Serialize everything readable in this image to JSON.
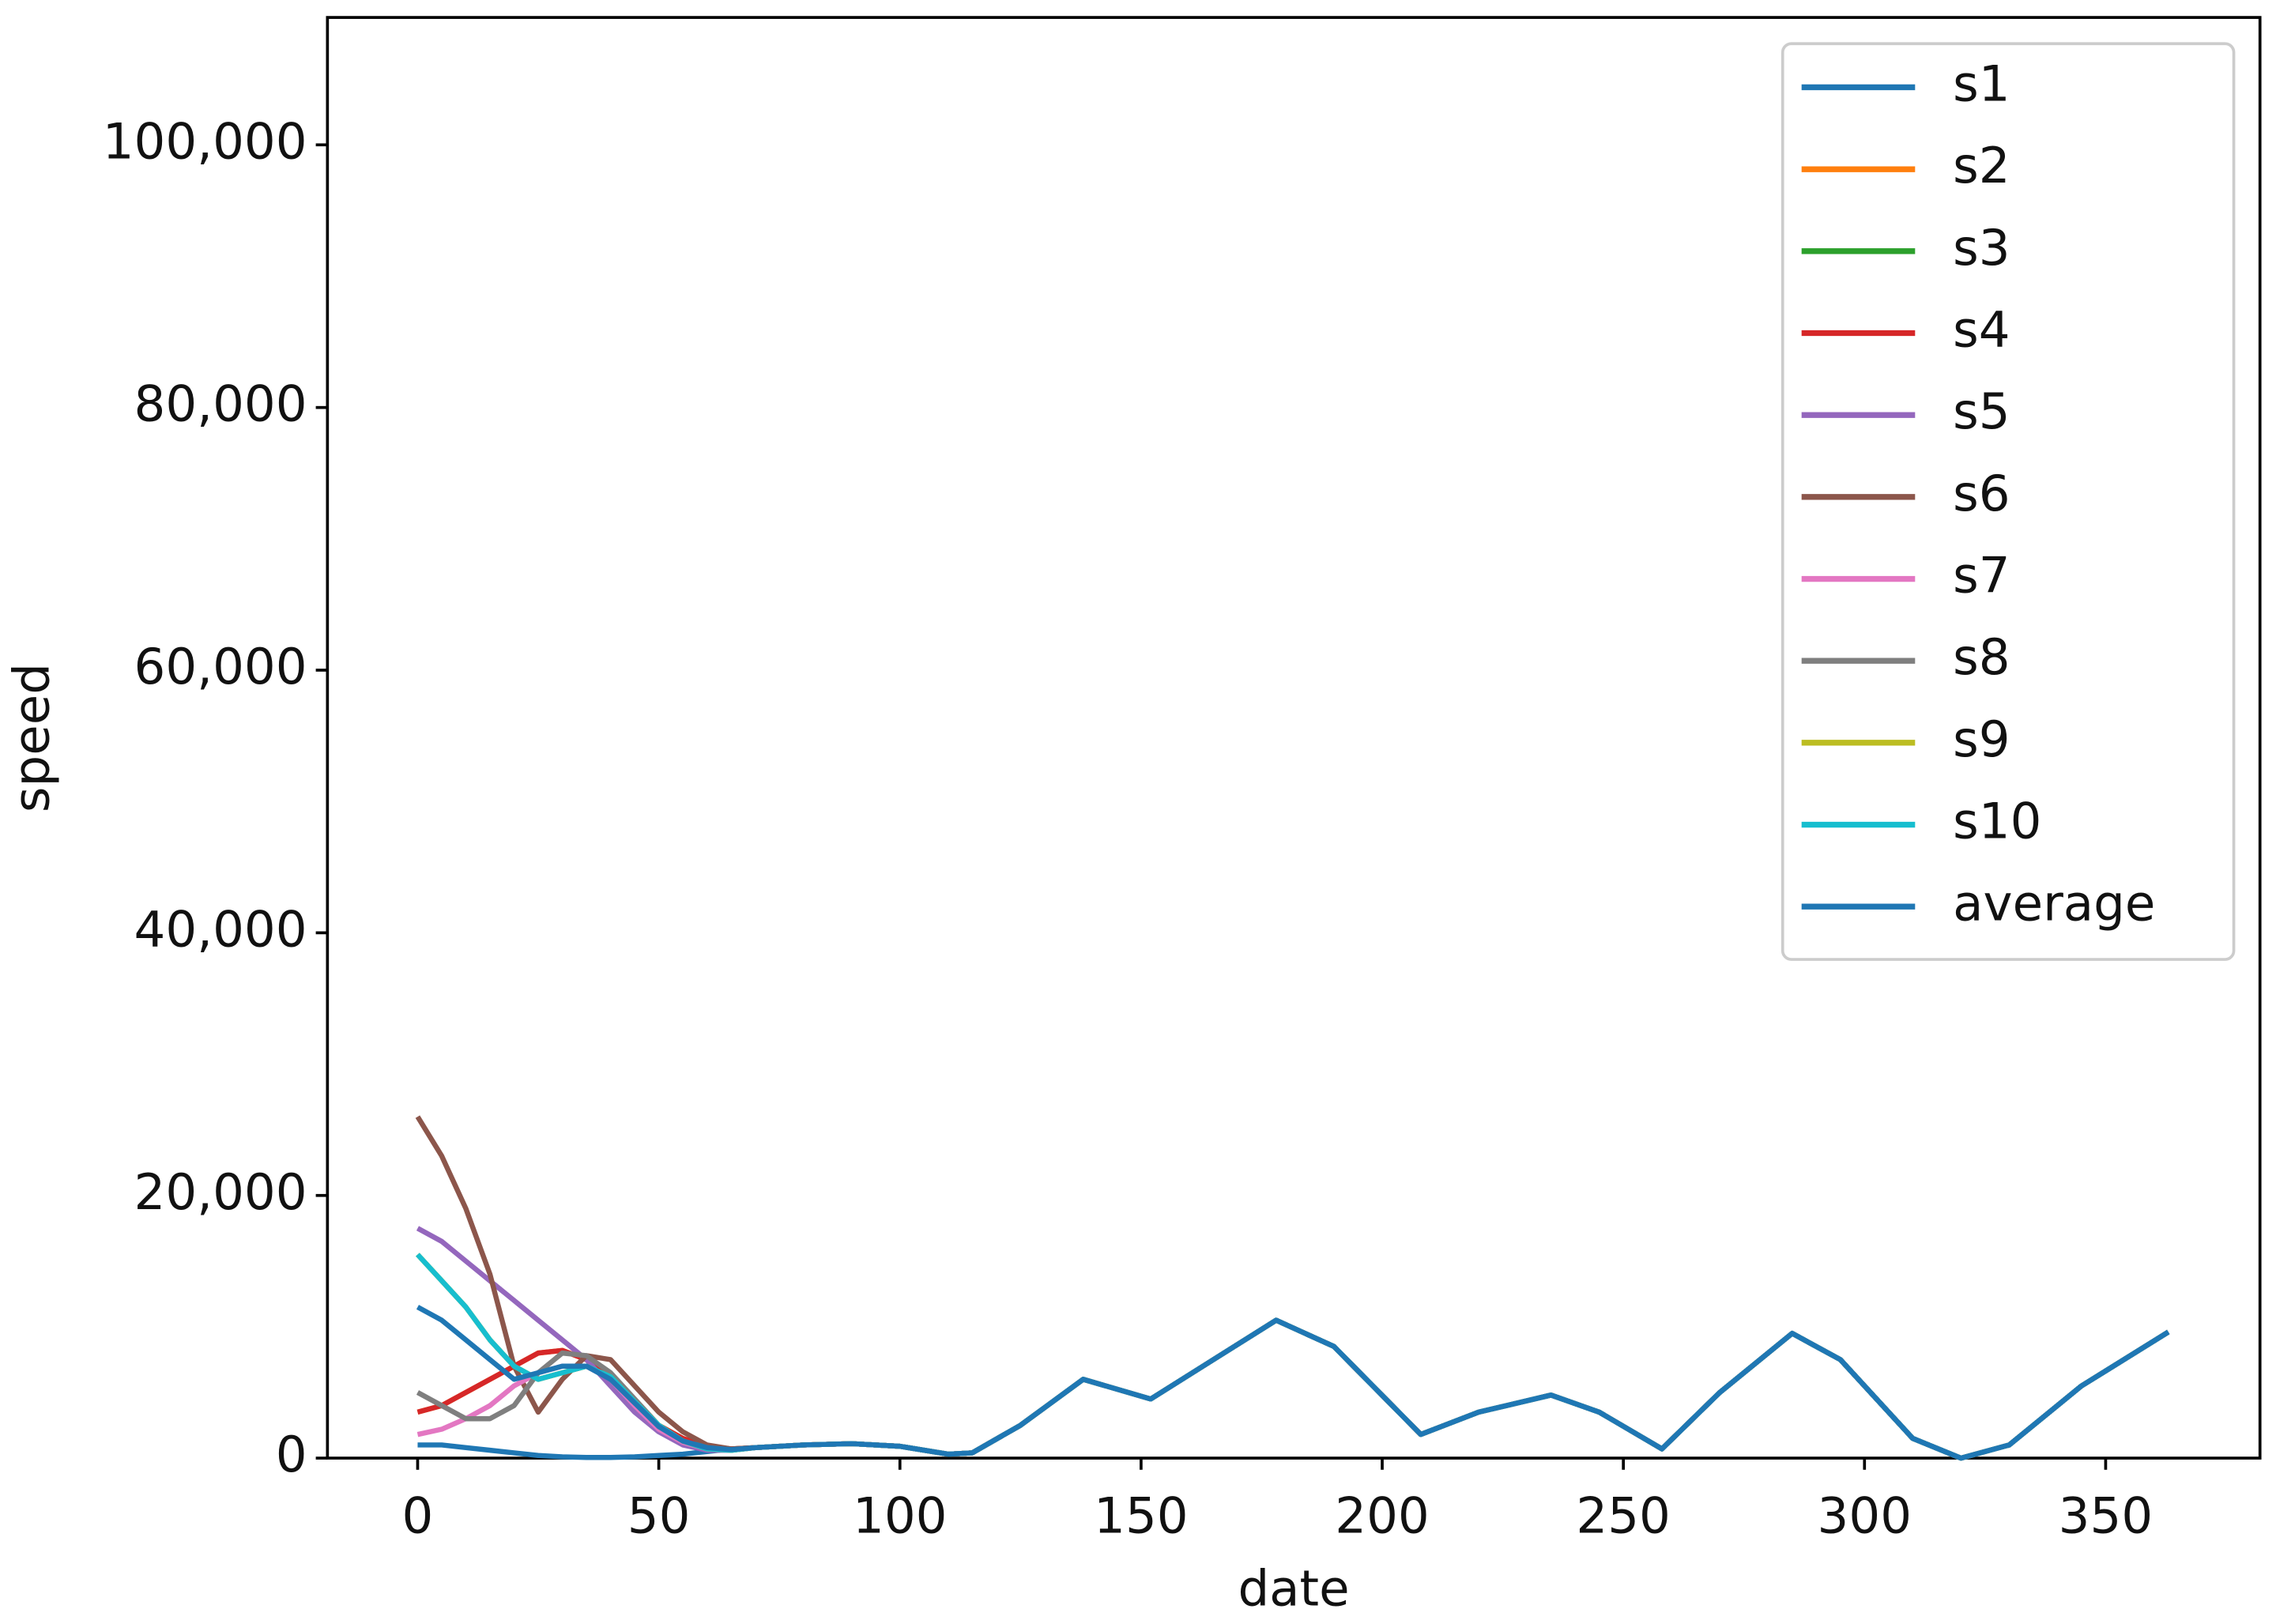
{
  "chart_data": {
    "type": "line",
    "x": [
      0,
      5,
      10,
      15,
      20,
      25,
      30,
      35,
      40,
      45,
      50,
      55,
      60,
      65,
      70,
      80,
      90,
      100,
      110,
      115,
      125,
      138,
      152,
      165,
      178,
      190,
      208,
      220,
      235,
      245,
      258,
      270,
      285,
      295,
      310,
      320,
      330,
      345,
      363
    ],
    "series": [
      {
        "name": "s1",
        "color": "#1f77b4",
        "values": [
          1000,
          1000,
          800,
          600,
          400,
          200,
          100,
          50,
          50,
          100,
          200,
          300,
          500,
          700,
          800,
          1000,
          1100,
          900,
          300,
          400,
          2500,
          6000,
          4500,
          7500,
          10500,
          8500,
          1800,
          3500,
          4800,
          3500,
          700,
          5000,
          9500,
          7500,
          1500,
          0,
          1000,
          5500,
          9600
        ]
      },
      {
        "name": "s2",
        "color": "#ff7f0e",
        "values": [
          3500,
          4000,
          5000,
          6000,
          7000,
          8000,
          8200,
          7500,
          6000,
          4000,
          2500,
          1500,
          900,
          700,
          800,
          1000,
          1100,
          900,
          300,
          400,
          2500,
          6000,
          4500,
          7500,
          10500,
          8500,
          1800,
          3500,
          4800,
          3500,
          700,
          5000,
          9500,
          7500,
          1500,
          0,
          1000,
          5500,
          9600
        ]
      },
      {
        "name": "s3",
        "color": "#2ca02c",
        "values": [
          15500,
          13500,
          11500,
          9000,
          7000,
          6000,
          6500,
          7000,
          6200,
          4300,
          2500,
          1300,
          700,
          600,
          800,
          1000,
          1100,
          900,
          300,
          400,
          2500,
          6000,
          4500,
          7500,
          10500,
          8500,
          1800,
          3500,
          4800,
          3500,
          700,
          5000,
          9500,
          7500,
          1500,
          0,
          1000,
          5500,
          9600
        ]
      },
      {
        "name": "s4",
        "color": "#d62728",
        "values": [
          3500,
          4000,
          5000,
          6000,
          7000,
          8000,
          8200,
          7500,
          6000,
          4000,
          2500,
          1500,
          900,
          700,
          800,
          1000,
          1100,
          900,
          300,
          400,
          2500,
          6000,
          4500,
          7500,
          10500,
          8500,
          1800,
          3500,
          4800,
          3500,
          700,
          5000,
          9500,
          7500,
          1500,
          0,
          1000,
          5500,
          9600
        ]
      },
      {
        "name": "s5",
        "color": "#9467bd",
        "values": [
          17500,
          16500,
          15000,
          13500,
          12000,
          10500,
          9000,
          7500,
          5500,
          3500,
          2000,
          1000,
          600,
          600,
          800,
          1000,
          1100,
          900,
          300,
          400,
          2500,
          6000,
          4500,
          7500,
          10500,
          8500,
          1800,
          3500,
          4800,
          3500,
          700,
          5000,
          9500,
          7500,
          1500,
          0,
          1000,
          5500,
          9600
        ]
      },
      {
        "name": "s6",
        "color": "#8c564b",
        "values": [
          26000,
          23000,
          19000,
          14000,
          7000,
          3500,
          6000,
          7800,
          7500,
          5500,
          3500,
          2000,
          1000,
          700,
          800,
          1000,
          1100,
          900,
          300,
          400,
          2500,
          6000,
          4500,
          7500,
          10500,
          8500,
          1800,
          3500,
          4800,
          3500,
          700,
          5000,
          9500,
          7500,
          1500,
          0,
          1000,
          5500,
          9600
        ]
      },
      {
        "name": "s7",
        "color": "#e377c2",
        "values": [
          1800,
          2200,
          3000,
          4000,
          5500,
          6500,
          7000,
          7000,
          6000,
          4000,
          2200,
          1200,
          700,
          600,
          800,
          1000,
          1100,
          900,
          300,
          400,
          2500,
          6000,
          4500,
          7500,
          10500,
          8500,
          1800,
          3500,
          4800,
          3500,
          700,
          5000,
          9500,
          7500,
          1500,
          0,
          1000,
          5500,
          9600
        ]
      },
      {
        "name": "s8",
        "color": "#7f7f7f",
        "values": [
          5000,
          4000,
          3000,
          3000,
          4000,
          6500,
          8000,
          7800,
          6500,
          4500,
          2500,
          1300,
          800,
          600,
          800,
          1000,
          1100,
          900,
          300,
          400,
          2500,
          6000,
          4500,
          7500,
          10500,
          8500,
          1800,
          3500,
          4800,
          3500,
          700,
          5000,
          9500,
          7500,
          1500,
          0,
          1000,
          5500,
          9600
        ]
      },
      {
        "name": "s9",
        "color": "#bcbd22",
        "values": [
          15500,
          13500,
          11500,
          9000,
          7000,
          6000,
          6500,
          7000,
          6200,
          4300,
          2500,
          1300,
          700,
          600,
          800,
          1000,
          1100,
          900,
          300,
          400,
          2500,
          6000,
          4500,
          7500,
          10500,
          8500,
          1800,
          3500,
          4800,
          3500,
          700,
          5000,
          9500,
          7500,
          1500,
          0,
          1000,
          5500,
          9600
        ]
      },
      {
        "name": "s10",
        "color": "#17becf",
        "values": [
          15500,
          13500,
          11500,
          9000,
          7000,
          6000,
          6500,
          7000,
          6200,
          4300,
          2500,
          1300,
          700,
          600,
          800,
          1000,
          1100,
          900,
          300,
          400,
          2500,
          6000,
          4500,
          7500,
          10500,
          8500,
          1800,
          3500,
          4800,
          3500,
          700,
          5000,
          9500,
          7500,
          1500,
          0,
          1000,
          5500,
          9600
        ]
      },
      {
        "name": "average",
        "color": "#1f77b4",
        "values": [
          11500,
          10500,
          9000,
          7500,
          6000,
          6500,
          7000,
          7000,
          6000,
          4200,
          2400,
          1300,
          800,
          650,
          800,
          1000,
          1100,
          900,
          300,
          400,
          2500,
          6000,
          4500,
          7500,
          10500,
          8500,
          1800,
          3500,
          4800,
          3500,
          700,
          5000,
          9500,
          7500,
          1500,
          0,
          1000,
          5500,
          9600
        ]
      }
    ],
    "x_label": "date",
    "y_label": "speed",
    "xlim": [
      -18.7,
      382
    ],
    "xticks": [
      0,
      50,
      100,
      150,
      200,
      250,
      300,
      350
    ],
    "ylim": [
      0,
      109700
    ],
    "yticks": [
      0,
      {
        "value": 20000,
        "label": "20,000"
      },
      {
        "value": 40000,
        "label": "40,000"
      },
      {
        "value": 60000,
        "label": "60,000"
      },
      {
        "value": 80000,
        "label": "80,000"
      },
      {
        "value": 100000,
        "label": "100,000"
      }
    ],
    "legend": "upper right",
    "grid": false
  }
}
